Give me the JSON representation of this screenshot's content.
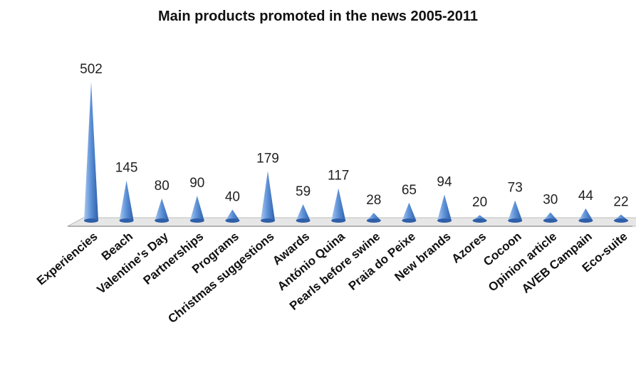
{
  "chart_data": {
    "type": "bar",
    "title": "Main products promoted in the news 2005-2011",
    "categories": [
      "Experiencies",
      "Beach",
      "Valentine's Day",
      "Partnerships",
      "Programs",
      "Christmas suggestions",
      "Awards",
      "António Quina",
      "Pearls before swine",
      "Praia do Peixe",
      "New brands",
      "Azores",
      "Cocoon",
      "Opinion article",
      "AVEB Campain",
      "Eco-suite"
    ],
    "values": [
      502,
      145,
      80,
      90,
      40,
      179,
      59,
      117,
      28,
      65,
      94,
      20,
      73,
      30,
      44,
      22
    ],
    "data_labels": [
      "502",
      "145",
      "80",
      "90",
      "40",
      "179",
      "59",
      "117",
      "28",
      "65",
      "94",
      "20",
      "73",
      "30",
      "44",
      "22"
    ],
    "xlabel": "",
    "ylabel": "",
    "ylim": [
      0,
      510
    ],
    "grid": false,
    "legend": "none",
    "colors": {
      "bar_light": "#a9c8ef",
      "bar_mid": "#5b8fd6",
      "bar_dark": "#2f5fa8",
      "floor": "#e6e6e6",
      "floor_edge": "#bdbdbd"
    }
  }
}
